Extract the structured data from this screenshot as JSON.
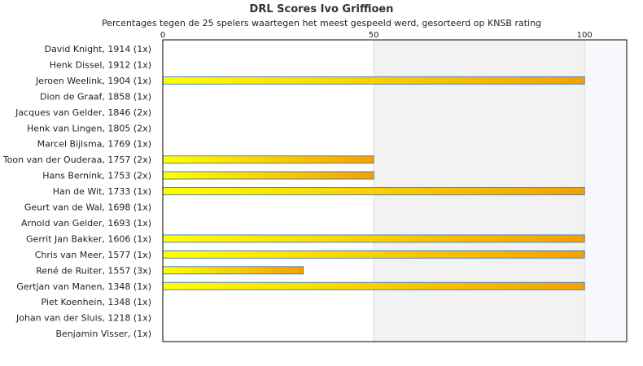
{
  "chart_data": {
    "type": "bar",
    "orientation": "horizontal",
    "title": "DRL Scores Ivo Griffioen",
    "subtitle": "Percentages tegen de 25 spelers waartegen het meest gespeeld werd, gesorteerd op KNSB rating",
    "categories": [
      "David Knight, 1914 (1x)",
      "Henk Dissel, 1912 (1x)",
      "Jeroen Weelink, 1904 (1x)",
      "Dion de Graaf, 1858 (1x)",
      "Jacques van Gelder, 1846 (2x)",
      "Henk van Lingen, 1805 (2x)",
      "Marcel Bijlsma, 1769 (1x)",
      "Toon van der Ouderaa, 1757 (2x)",
      "Hans Bernink, 1753 (2x)",
      "Han de Wit, 1733 (1x)",
      "Geurt van de Wal, 1698 (1x)",
      "Arnold van Gelder, 1693 (1x)",
      "Gerrit Jan Bakker, 1606 (1x)",
      "Chris van Meer, 1577 (1x)",
      "René de Ruiter, 1557 (3x)",
      "Gertjan van Manen, 1348 (1x)",
      "Piet Koenhein, 1348 (1x)",
      "Johan van der Sluis, 1218 (1x)",
      "Benjamin Visser,  (1x)"
    ],
    "values": [
      0,
      0,
      100,
      0,
      0,
      0,
      0,
      50,
      50,
      100,
      0,
      0,
      100,
      100,
      33.3,
      100,
      0,
      0,
      0
    ],
    "xlim": [
      0,
      110
    ],
    "xticks": [
      "0",
      "50",
      "100"
    ],
    "grid": true,
    "colors": {
      "bar_start": "#ffff00",
      "bar_end": "#f5a000",
      "bar_border": "#4f81bd",
      "band_light": "#f2f2f2",
      "band_lighter": "#f7f8fc",
      "plot_border": "#000000"
    }
  }
}
